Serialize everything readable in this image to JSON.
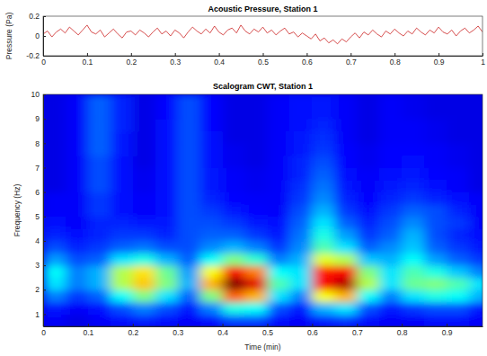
{
  "chart_data": [
    {
      "type": "line",
      "title": "Acoustic Pressure, Station 1",
      "ylabel": "Pressure (Pa)",
      "color": "#cc2222",
      "x": [
        0,
        0.01,
        0.02,
        0.03,
        0.04,
        0.05,
        0.06,
        0.07,
        0.08,
        0.09,
        0.1,
        0.11,
        0.12,
        0.13,
        0.14,
        0.15,
        0.16,
        0.17,
        0.18,
        0.19,
        0.2,
        0.21,
        0.22,
        0.23,
        0.24,
        0.25,
        0.26,
        0.27,
        0.28,
        0.29,
        0.3,
        0.31,
        0.32,
        0.33,
        0.34,
        0.35,
        0.36,
        0.37,
        0.38,
        0.39,
        0.4,
        0.41,
        0.42,
        0.43,
        0.44,
        0.45,
        0.46,
        0.47,
        0.48,
        0.49,
        0.5,
        0.51,
        0.52,
        0.53,
        0.54,
        0.55,
        0.56,
        0.57,
        0.58,
        0.59,
        0.6,
        0.61,
        0.62,
        0.63,
        0.64,
        0.65,
        0.66,
        0.67,
        0.68,
        0.69,
        0.7,
        0.71,
        0.72,
        0.73,
        0.74,
        0.75,
        0.76,
        0.77,
        0.78,
        0.79,
        0.8,
        0.81,
        0.82,
        0.83,
        0.84,
        0.85,
        0.86,
        0.87,
        0.88,
        0.89,
        0.9,
        0.91,
        0.92,
        0.93,
        0.94,
        0.95,
        0.96,
        0.97,
        0.98,
        0.99,
        1
      ],
      "values": [
        0.02,
        0.05,
        -0.01,
        0.04,
        0.07,
        0.03,
        0.09,
        0.05,
        0.01,
        0.06,
        0.11,
        0.04,
        0.02,
        0.06,
        -0.01,
        0.03,
        0.07,
        0.02,
        -0.02,
        0.04,
        0.05,
        0.01,
        0.06,
        0.03,
        -0.01,
        0.04,
        0.08,
        0.02,
        0.05,
        0.0,
        0.06,
        0.03,
        -0.02,
        0.04,
        0.09,
        0.05,
        0.02,
        0.07,
        0.03,
        0.1,
        0.04,
        0.01,
        0.06,
        0.08,
        0.03,
        0.11,
        0.05,
        0.02,
        0.07,
        0.04,
        0.09,
        0.03,
        0.06,
        0.01,
        0.05,
        0.08,
        0.02,
        0.04,
        -0.01,
        0.03,
        0.0,
        -0.03,
        0.02,
        -0.05,
        -0.02,
        -0.07,
        -0.04,
        -0.08,
        -0.03,
        -0.06,
        -0.01,
        0.03,
        -0.02,
        0.04,
        0.01,
        0.06,
        0.02,
        -0.01,
        0.05,
        0.02,
        0.07,
        0.03,
        0.0,
        0.05,
        0.02,
        0.08,
        0.04,
        0.01,
        0.06,
        0.03,
        0.09,
        0.04,
        0.02,
        0.06,
        0.0,
        0.05,
        0.08,
        0.03,
        0.06,
        0.1,
        0.04
      ],
      "xlim": [
        0,
        1
      ],
      "xticks": [
        0,
        0.1,
        0.2,
        0.3,
        0.4,
        0.5,
        0.6,
        0.7,
        0.8,
        0.9,
        1
      ],
      "ylim": [
        -0.2,
        0.2
      ],
      "yticks": [
        -0.2,
        0,
        0.2
      ]
    },
    {
      "type": "heatmap",
      "title": "Scalogram CWT, Station 1",
      "xlabel": "Time (min)",
      "ylabel": "Frequency (Hz)",
      "x": [
        0.025,
        0.075,
        0.125,
        0.175,
        0.225,
        0.275,
        0.325,
        0.375,
        0.425,
        0.475,
        0.525,
        0.575,
        0.625,
        0.675,
        0.725,
        0.775,
        0.825,
        0.875,
        0.925,
        0.975
      ],
      "y": [
        0.75,
        1.25,
        1.75,
        2.25,
        2.75,
        3.25,
        3.75,
        4.25,
        4.75,
        5.25,
        5.75,
        6.25,
        6.75,
        7.25,
        7.75,
        8.25,
        8.75,
        9.25,
        9.75
      ],
      "cells": [
        [
          0.12,
          0.1,
          0.12,
          0.14,
          0.16,
          0.14,
          0.12,
          0.14,
          0.2,
          0.2,
          0.14,
          0.12,
          0.16,
          0.18,
          0.14,
          0.12,
          0.12,
          0.14,
          0.14,
          0.12
        ],
        [
          0.15,
          0.12,
          0.14,
          0.2,
          0.25,
          0.2,
          0.15,
          0.25,
          0.4,
          0.38,
          0.2,
          0.15,
          0.3,
          0.35,
          0.2,
          0.15,
          0.18,
          0.2,
          0.2,
          0.15
        ],
        [
          0.25,
          0.18,
          0.22,
          0.38,
          0.5,
          0.35,
          0.22,
          0.5,
          0.78,
          0.7,
          0.35,
          0.25,
          0.62,
          0.7,
          0.38,
          0.25,
          0.35,
          0.4,
          0.38,
          0.3
        ],
        [
          0.35,
          0.25,
          0.3,
          0.55,
          0.68,
          0.5,
          0.3,
          0.7,
          1.0,
          0.9,
          0.45,
          0.35,
          0.88,
          0.95,
          0.55,
          0.35,
          0.48,
          0.5,
          0.45,
          0.35
        ],
        [
          0.38,
          0.25,
          0.3,
          0.55,
          0.65,
          0.48,
          0.28,
          0.62,
          0.88,
          0.75,
          0.38,
          0.35,
          0.85,
          0.88,
          0.5,
          0.35,
          0.45,
          0.4,
          0.32,
          0.25
        ],
        [
          0.28,
          0.2,
          0.22,
          0.35,
          0.4,
          0.3,
          0.22,
          0.38,
          0.5,
          0.42,
          0.25,
          0.3,
          0.6,
          0.55,
          0.32,
          0.3,
          0.38,
          0.28,
          0.22,
          0.18
        ],
        [
          0.2,
          0.16,
          0.18,
          0.22,
          0.24,
          0.2,
          0.2,
          0.26,
          0.3,
          0.25,
          0.18,
          0.26,
          0.45,
          0.35,
          0.22,
          0.26,
          0.32,
          0.22,
          0.18,
          0.15
        ],
        [
          0.16,
          0.14,
          0.16,
          0.18,
          0.18,
          0.16,
          0.2,
          0.22,
          0.22,
          0.18,
          0.15,
          0.24,
          0.4,
          0.28,
          0.18,
          0.22,
          0.3,
          0.2,
          0.16,
          0.14
        ],
        [
          0.14,
          0.12,
          0.16,
          0.16,
          0.15,
          0.15,
          0.2,
          0.2,
          0.18,
          0.15,
          0.14,
          0.22,
          0.35,
          0.22,
          0.16,
          0.2,
          0.26,
          0.2,
          0.18,
          0.12
        ],
        [
          0.12,
          0.12,
          0.18,
          0.14,
          0.12,
          0.14,
          0.2,
          0.18,
          0.15,
          0.13,
          0.12,
          0.2,
          0.3,
          0.18,
          0.14,
          0.18,
          0.22,
          0.2,
          0.16,
          0.12
        ],
        [
          0.12,
          0.12,
          0.18,
          0.14,
          0.12,
          0.14,
          0.2,
          0.16,
          0.13,
          0.12,
          0.12,
          0.18,
          0.26,
          0.16,
          0.13,
          0.16,
          0.18,
          0.16,
          0.14,
          0.12
        ],
        [
          0.1,
          0.12,
          0.2,
          0.14,
          0.11,
          0.14,
          0.2,
          0.15,
          0.12,
          0.11,
          0.12,
          0.17,
          0.24,
          0.15,
          0.12,
          0.15,
          0.16,
          0.14,
          0.12,
          0.1
        ],
        [
          0.1,
          0.12,
          0.2,
          0.14,
          0.11,
          0.14,
          0.2,
          0.15,
          0.12,
          0.11,
          0.12,
          0.16,
          0.22,
          0.14,
          0.12,
          0.14,
          0.15,
          0.13,
          0.12,
          0.1
        ],
        [
          0.1,
          0.12,
          0.2,
          0.14,
          0.1,
          0.14,
          0.2,
          0.14,
          0.11,
          0.1,
          0.12,
          0.16,
          0.2,
          0.13,
          0.11,
          0.13,
          0.14,
          0.12,
          0.11,
          0.1
        ],
        [
          0.1,
          0.12,
          0.22,
          0.15,
          0.1,
          0.14,
          0.2,
          0.14,
          0.11,
          0.1,
          0.12,
          0.15,
          0.18,
          0.13,
          0.11,
          0.13,
          0.13,
          0.12,
          0.11,
          0.1
        ],
        [
          0.1,
          0.12,
          0.22,
          0.15,
          0.1,
          0.14,
          0.2,
          0.14,
          0.1,
          0.1,
          0.12,
          0.15,
          0.17,
          0.12,
          0.1,
          0.12,
          0.12,
          0.11,
          0.1,
          0.1
        ],
        [
          0.1,
          0.12,
          0.22,
          0.16,
          0.1,
          0.14,
          0.2,
          0.13,
          0.1,
          0.1,
          0.12,
          0.14,
          0.16,
          0.12,
          0.1,
          0.12,
          0.12,
          0.11,
          0.1,
          0.1
        ],
        [
          0.1,
          0.12,
          0.22,
          0.16,
          0.1,
          0.13,
          0.2,
          0.13,
          0.1,
          0.1,
          0.12,
          0.14,
          0.15,
          0.12,
          0.1,
          0.12,
          0.11,
          0.1,
          0.1,
          0.1
        ],
        [
          0.1,
          0.12,
          0.22,
          0.16,
          0.1,
          0.13,
          0.2,
          0.13,
          0.1,
          0.1,
          0.12,
          0.14,
          0.15,
          0.12,
          0.1,
          0.12,
          0.11,
          0.1,
          0.1,
          0.1
        ]
      ],
      "zlim": [
        0,
        1
      ],
      "xlim": [
        0,
        0.98
      ],
      "xticks": [
        0,
        0.1,
        0.2,
        0.3,
        0.4,
        0.5,
        0.6,
        0.7,
        0.8,
        0.9
      ],
      "ylim": [
        0.5,
        10
      ],
      "yticks": [
        1,
        2,
        3,
        4,
        5,
        6,
        7,
        8,
        9,
        10
      ]
    }
  ]
}
